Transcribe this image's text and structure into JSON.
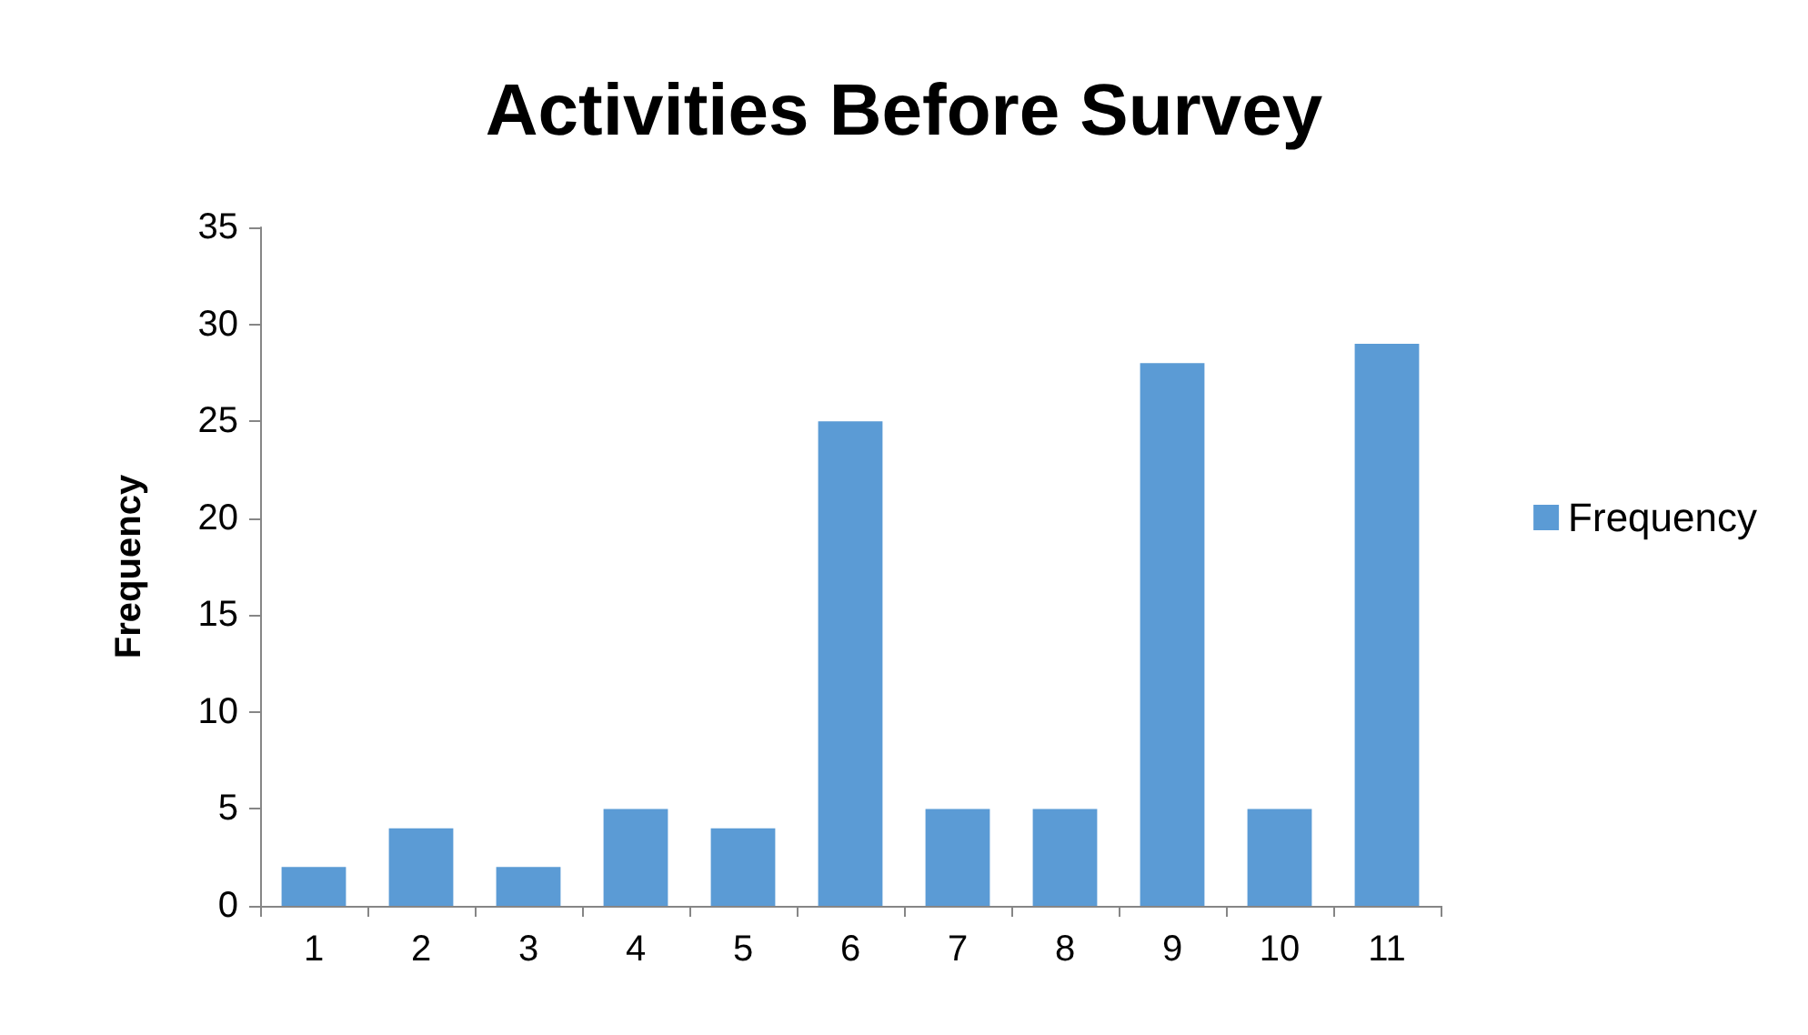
{
  "chart_data": {
    "type": "bar",
    "title": "Activities Before Survey",
    "ylabel": "Frequency",
    "categories": [
      "1",
      "2",
      "3",
      "4",
      "5",
      "6",
      "7",
      "8",
      "9",
      "10",
      "11"
    ],
    "series": [
      {
        "name": "Frequency",
        "color": "#5b9bd5",
        "values": [
          2,
          4,
          2,
          5,
          4,
          25,
          5,
          5,
          28,
          5,
          29
        ]
      }
    ],
    "ylim": [
      0,
      35
    ],
    "yticks": [
      0,
      5,
      10,
      15,
      20,
      25,
      30,
      35
    ],
    "grid": false,
    "legend": "right"
  }
}
